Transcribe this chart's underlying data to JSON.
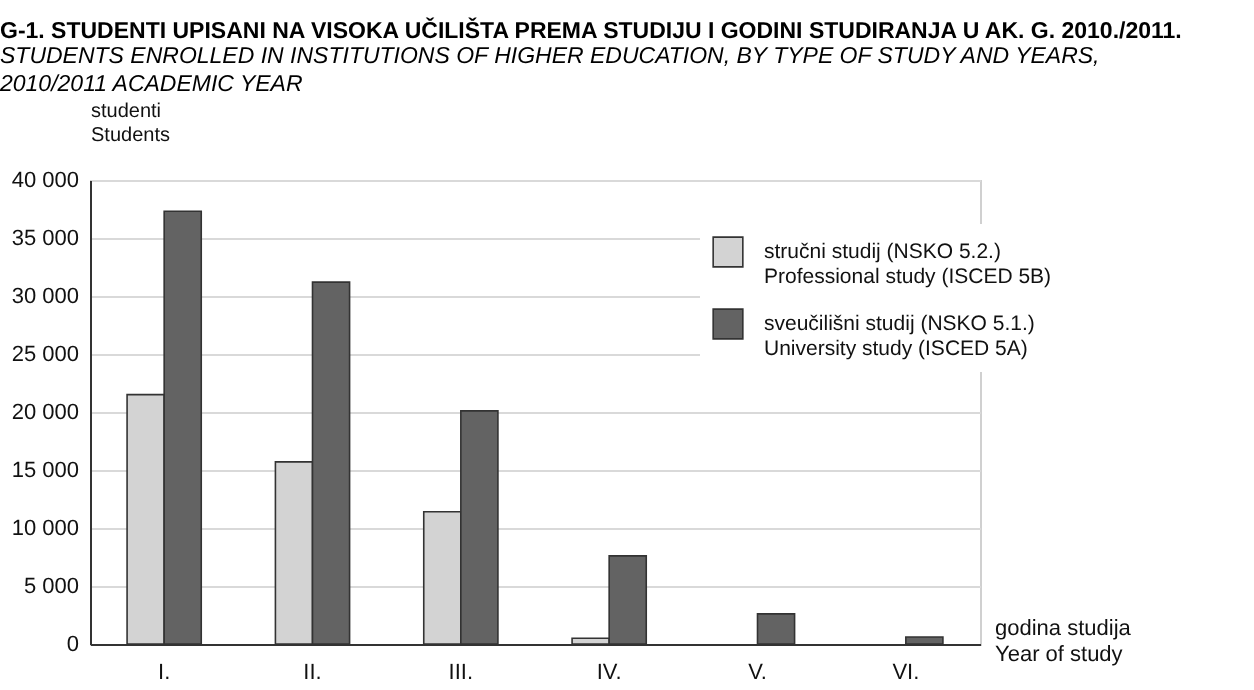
{
  "chart_data": {
    "type": "bar",
    "title": "G-1. STUDENTI UPISANI NA VISOKA UČILIŠTA PREMA STUDIJU I GODINI STUDIRANJA U AK. G. 2010./2011.",
    "subtitle": "STUDENTS ENROLLED IN INSTITUTIONS OF HIGHER EDUCATION, BY TYPE OF STUDY AND YEARS,\n2010/2011 ACADEMIC YEAR",
    "ylabel": "studenti\nStudents",
    "xlabel": "godina studija\nYear of study",
    "categories": [
      "I.",
      "II.",
      "III.",
      "IV.",
      "V.",
      "VI."
    ],
    "series": [
      {
        "name": "stručni studij (NSKO 5.2.)\nProfessional study (ISCED 5B)",
        "color": "#d3d3d3",
        "values": [
          21500,
          15700,
          11400,
          500,
          null,
          null
        ]
      },
      {
        "name": "sveučilišni studij (NSKO 5.1.)\nUniversity study (ISCED 5A)",
        "color": "#636363",
        "values": [
          37300,
          31200,
          20100,
          7600,
          2600,
          600
        ]
      }
    ],
    "ylim": [
      0,
      40000
    ],
    "yticks": [
      {
        "value": 0,
        "label": "0"
      },
      {
        "value": 5000,
        "label": "5 000"
      },
      {
        "value": 10000,
        "label": "10 000"
      },
      {
        "value": 15000,
        "label": "15 000"
      },
      {
        "value": 20000,
        "label": "20 000"
      },
      {
        "value": 25000,
        "label": "25 000"
      },
      {
        "value": 30000,
        "label": "30 000"
      },
      {
        "value": 35000,
        "label": "35 000"
      },
      {
        "value": 40000,
        "label": "40 000"
      }
    ],
    "grid": "y",
    "legend": "top right"
  }
}
